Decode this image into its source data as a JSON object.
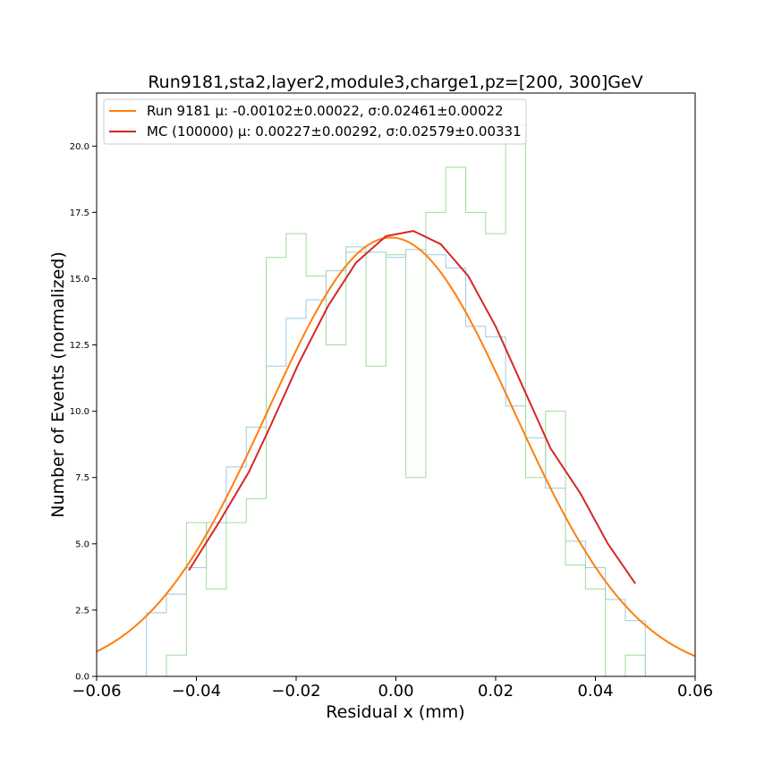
{
  "chart_data": {
    "type": "line",
    "title": "Run9181,sta2,layer2,module3,charge1,pz=[200, 300]GeV",
    "xlabel": "Residual x (mm)",
    "ylabel": "Number of Events (normalized)",
    "xlim": [
      -0.06,
      0.06
    ],
    "ylim": [
      0,
      22
    ],
    "x_ticks": [
      -0.06,
      -0.04,
      -0.02,
      0.0,
      0.02,
      0.04,
      0.06
    ],
    "x_tick_labels": [
      "−0.06",
      "−0.04",
      "−0.02",
      "0.00",
      "0.02",
      "0.04",
      "0.06"
    ],
    "y_ticks": [
      0,
      2.5,
      5.0,
      7.5,
      10.0,
      12.5,
      15.0,
      17.5,
      20.0
    ],
    "y_tick_labels": [
      "0.0",
      "2.5",
      "5.0",
      "7.5",
      "10.0",
      "12.5",
      "15.0",
      "17.5",
      "20.0"
    ],
    "grid": false,
    "legend_position": "top-left",
    "histograms": [
      {
        "color": "#9ecae1",
        "bin_edges": [
          -0.05,
          -0.046,
          -0.042,
          -0.038,
          -0.034,
          -0.03,
          -0.026,
          -0.022,
          -0.018,
          -0.014,
          -0.01,
          -0.006,
          -0.002,
          0.002,
          0.006,
          0.01,
          0.014,
          0.018,
          0.022,
          0.026,
          0.03,
          0.034,
          0.038,
          0.042,
          0.046,
          0.05
        ],
        "values": [
          2.4,
          3.1,
          4.1,
          5.8,
          7.9,
          9.4,
          11.7,
          13.5,
          14.2,
          15.3,
          16.2,
          16.0,
          15.8,
          16.1,
          15.9,
          15.4,
          13.2,
          12.8,
          10.2,
          9.0,
          7.1,
          5.1,
          4.1,
          2.9,
          2.1
        ]
      },
      {
        "color": "#a1d99b",
        "bin_edges": [
          -0.05,
          -0.046,
          -0.042,
          -0.038,
          -0.034,
          -0.03,
          -0.026,
          -0.022,
          -0.018,
          -0.014,
          -0.01,
          -0.006,
          -0.002,
          0.002,
          0.006,
          0.01,
          0.014,
          0.018,
          0.022,
          0.026,
          0.03,
          0.034,
          0.038,
          0.042,
          0.046,
          0.05
        ],
        "values": [
          0.0,
          0.8,
          5.8,
          3.3,
          5.8,
          6.7,
          15.8,
          16.7,
          15.1,
          12.5,
          16.0,
          11.7,
          15.9,
          7.5,
          17.5,
          19.2,
          17.5,
          16.7,
          20.8,
          7.5,
          10.0,
          4.2,
          3.3,
          0.0,
          0.8
        ]
      }
    ],
    "series": [
      {
        "name": "Run 9181 μ: -0.00102±0.00022, σ:0.02461±0.00022",
        "color": "#ff7f0e",
        "kind": "gaussian",
        "amplitude": 16.55,
        "mu": -0.00102,
        "sigma": 0.02461,
        "x_range": [
          -0.06,
          0.06
        ]
      },
      {
        "name": "MC (100000) μ: 0.00227±0.00292, σ:0.02579±0.00331",
        "color": "#d62728",
        "kind": "line",
        "x": [
          -0.0415,
          -0.0355,
          -0.0295,
          -0.0255,
          -0.0195,
          -0.0135,
          -0.008,
          -0.002,
          0.0035,
          0.009,
          0.0145,
          0.02,
          0.0255,
          0.031,
          0.037,
          0.0425,
          0.048
        ],
        "y": [
          4.0,
          5.8,
          7.7,
          9.3,
          11.8,
          14.0,
          15.6,
          16.6,
          16.8,
          16.3,
          15.1,
          13.2,
          10.9,
          8.6,
          6.9,
          5.0,
          3.5
        ]
      }
    ]
  }
}
